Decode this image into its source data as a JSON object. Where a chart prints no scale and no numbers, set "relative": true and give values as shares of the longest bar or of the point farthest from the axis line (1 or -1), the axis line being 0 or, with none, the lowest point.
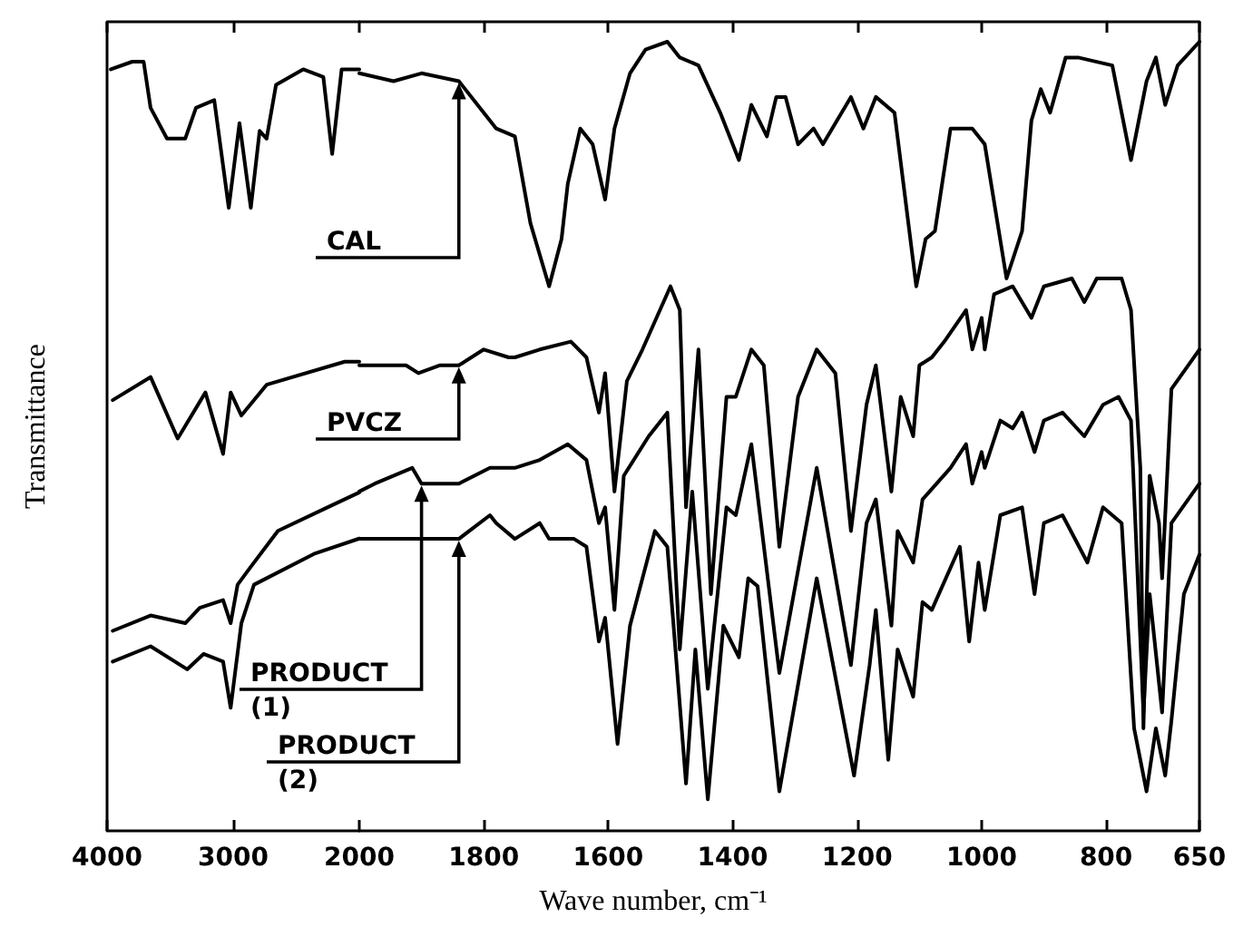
{
  "chart_data": [
    {
      "type": "line",
      "relative": true,
      "ylabel": "Transmittance",
      "xlim": [
        4000,
        2000
      ],
      "xticks": [
        4000,
        3000,
        2000
      ],
      "series": [
        {
          "color": "#000000",
          "x": [
            3970,
            3800,
            3710,
            3655,
            3525,
            3380,
            3295,
            3150,
            3035,
            2950,
            2860,
            2790,
            2735,
            2660,
            2445,
            2285,
            2215,
            2140,
            2000
          ],
          "values": [
            0.99,
            1.0,
            1.0,
            0.94,
            0.9,
            0.9,
            0.94,
            0.95,
            0.81,
            0.92,
            0.81,
            0.91,
            0.9,
            0.97,
            0.99,
            0.98,
            0.88,
            0.99,
            0.99
          ]
        },
        {
          "color": "#000000",
          "x": [
            3955,
            3655,
            3440,
            3220,
            3080,
            3020,
            2935,
            2735,
            2115,
            2000
          ],
          "values": [
            0.56,
            0.59,
            0.51,
            0.57,
            0.49,
            0.57,
            0.54,
            0.58,
            0.61,
            0.61
          ]
        },
        {
          "color": "#000000",
          "x": [
            3955,
            3655,
            3380,
            3265,
            3080,
            3020,
            2965,
            2875,
            2645,
            2260,
            2000
          ],
          "values": [
            0.26,
            0.28,
            0.27,
            0.29,
            0.3,
            0.27,
            0.32,
            0.34,
            0.39,
            0.42,
            0.44
          ]
        },
        {
          "color": "#000000",
          "x": [
            3955,
            3655,
            3365,
            3235,
            3080,
            3020,
            2935,
            2835,
            2360,
            2000
          ],
          "values": [
            0.22,
            0.24,
            0.21,
            0.23,
            0.22,
            0.16,
            0.27,
            0.32,
            0.36,
            0.38
          ]
        }
      ]
    },
    {
      "type": "line",
      "relative": true,
      "xlabel": "Wave number, cm⁻¹",
      "xlim": [
        2000,
        650
      ],
      "xticks": [
        1800,
        1600,
        1400,
        1200,
        1000,
        800,
        650
      ],
      "series": [
        {
          "name": "CAL",
          "color": "#000000",
          "x": [
            2000,
            1945,
            1900,
            1840,
            1790,
            1780,
            1750,
            1725,
            1695,
            1675,
            1665,
            1645,
            1625,
            1605,
            1590,
            1565,
            1540,
            1505,
            1485,
            1455,
            1420,
            1390,
            1370,
            1345,
            1330,
            1315,
            1295,
            1270,
            1255,
            1210,
            1190,
            1170,
            1140,
            1105,
            1090,
            1075,
            1050,
            1015,
            995,
            960,
            935,
            920,
            905,
            890,
            865,
            845,
            790,
            760,
            735,
            720,
            705,
            685,
            650
          ],
          "values": [
            0.96,
            0.95,
            0.96,
            0.95,
            0.9,
            0.89,
            0.88,
            0.77,
            0.69,
            0.75,
            0.82,
            0.89,
            0.87,
            0.8,
            0.89,
            0.96,
            0.99,
            1.0,
            0.98,
            0.97,
            0.91,
            0.85,
            0.92,
            0.88,
            0.93,
            0.93,
            0.87,
            0.89,
            0.87,
            0.93,
            0.89,
            0.93,
            0.91,
            0.69,
            0.75,
            0.76,
            0.89,
            0.89,
            0.87,
            0.7,
            0.76,
            0.9,
            0.94,
            0.91,
            0.98,
            0.98,
            0.97,
            0.85,
            0.95,
            0.98,
            0.92,
            0.97,
            1.0
          ]
        },
        {
          "name": "PVCZ",
          "color": "#000000",
          "x": [
            2000,
            1925,
            1905,
            1870,
            1840,
            1800,
            1760,
            1750,
            1710,
            1660,
            1635,
            1615,
            1605,
            1590,
            1570,
            1545,
            1500,
            1485,
            1475,
            1455,
            1435,
            1410,
            1395,
            1370,
            1350,
            1325,
            1295,
            1265,
            1235,
            1210,
            1185,
            1170,
            1145,
            1130,
            1110,
            1100,
            1080,
            1060,
            1025,
            1015,
            1000,
            995,
            980,
            950,
            920,
            900,
            855,
            835,
            815,
            775,
            760,
            745,
            740,
            730,
            715,
            710,
            695,
            650
          ],
          "values": [
            0.59,
            0.59,
            0.58,
            0.59,
            0.59,
            0.61,
            0.6,
            0.6,
            0.61,
            0.62,
            0.6,
            0.53,
            0.58,
            0.43,
            0.57,
            0.61,
            0.69,
            0.66,
            0.41,
            0.61,
            0.3,
            0.55,
            0.55,
            0.61,
            0.59,
            0.36,
            0.55,
            0.61,
            0.58,
            0.38,
            0.54,
            0.59,
            0.43,
            0.55,
            0.5,
            0.59,
            0.6,
            0.62,
            0.66,
            0.61,
            0.65,
            0.61,
            0.68,
            0.69,
            0.65,
            0.69,
            0.7,
            0.67,
            0.7,
            0.7,
            0.66,
            0.46,
            0.13,
            0.45,
            0.39,
            0.32,
            0.56,
            0.61
          ]
        },
        {
          "name": "PRODUCT (1)",
          "color": "#000000",
          "x": [
            2000,
            1975,
            1915,
            1900,
            1870,
            1840,
            1790,
            1760,
            1750,
            1710,
            1665,
            1635,
            1615,
            1605,
            1590,
            1575,
            1535,
            1505,
            1485,
            1465,
            1440,
            1410,
            1395,
            1370,
            1325,
            1265,
            1210,
            1185,
            1170,
            1145,
            1135,
            1110,
            1095,
            1050,
            1025,
            1015,
            1000,
            995,
            970,
            950,
            935,
            915,
            900,
            870,
            835,
            805,
            780,
            760,
            740,
            730,
            710,
            695,
            650
          ],
          "values": [
            0.43,
            0.44,
            0.46,
            0.44,
            0.44,
            0.44,
            0.46,
            0.46,
            0.46,
            0.47,
            0.49,
            0.47,
            0.39,
            0.41,
            0.28,
            0.45,
            0.5,
            0.53,
            0.23,
            0.43,
            0.18,
            0.41,
            0.4,
            0.49,
            0.2,
            0.46,
            0.21,
            0.39,
            0.42,
            0.26,
            0.38,
            0.34,
            0.42,
            0.46,
            0.49,
            0.44,
            0.48,
            0.46,
            0.52,
            0.51,
            0.53,
            0.48,
            0.52,
            0.53,
            0.5,
            0.54,
            0.55,
            0.52,
            0.15,
            0.3,
            0.15,
            0.39,
            0.44
          ]
        },
        {
          "name": "PRODUCT (2)",
          "color": "#000000",
          "x": [
            2000,
            1975,
            1905,
            1885,
            1855,
            1840,
            1790,
            1780,
            1750,
            1710,
            1695,
            1655,
            1635,
            1615,
            1605,
            1585,
            1565,
            1525,
            1505,
            1475,
            1460,
            1440,
            1415,
            1390,
            1375,
            1360,
            1325,
            1265,
            1205,
            1180,
            1170,
            1150,
            1135,
            1110,
            1095,
            1080,
            1035,
            1020,
            1005,
            995,
            970,
            935,
            915,
            900,
            870,
            830,
            805,
            775,
            755,
            735,
            720,
            705,
            695,
            675,
            650
          ],
          "values": [
            0.37,
            0.37,
            0.37,
            0.37,
            0.37,
            0.37,
            0.4,
            0.39,
            0.37,
            0.39,
            0.37,
            0.37,
            0.36,
            0.24,
            0.27,
            0.11,
            0.26,
            0.38,
            0.36,
            0.06,
            0.23,
            0.04,
            0.26,
            0.22,
            0.32,
            0.31,
            0.05,
            0.32,
            0.07,
            0.21,
            0.28,
            0.09,
            0.23,
            0.17,
            0.29,
            0.28,
            0.36,
            0.24,
            0.34,
            0.28,
            0.4,
            0.41,
            0.3,
            0.39,
            0.4,
            0.34,
            0.41,
            0.39,
            0.13,
            0.05,
            0.13,
            0.07,
            0.14,
            0.3,
            0.35
          ]
        }
      ]
    }
  ]
}
